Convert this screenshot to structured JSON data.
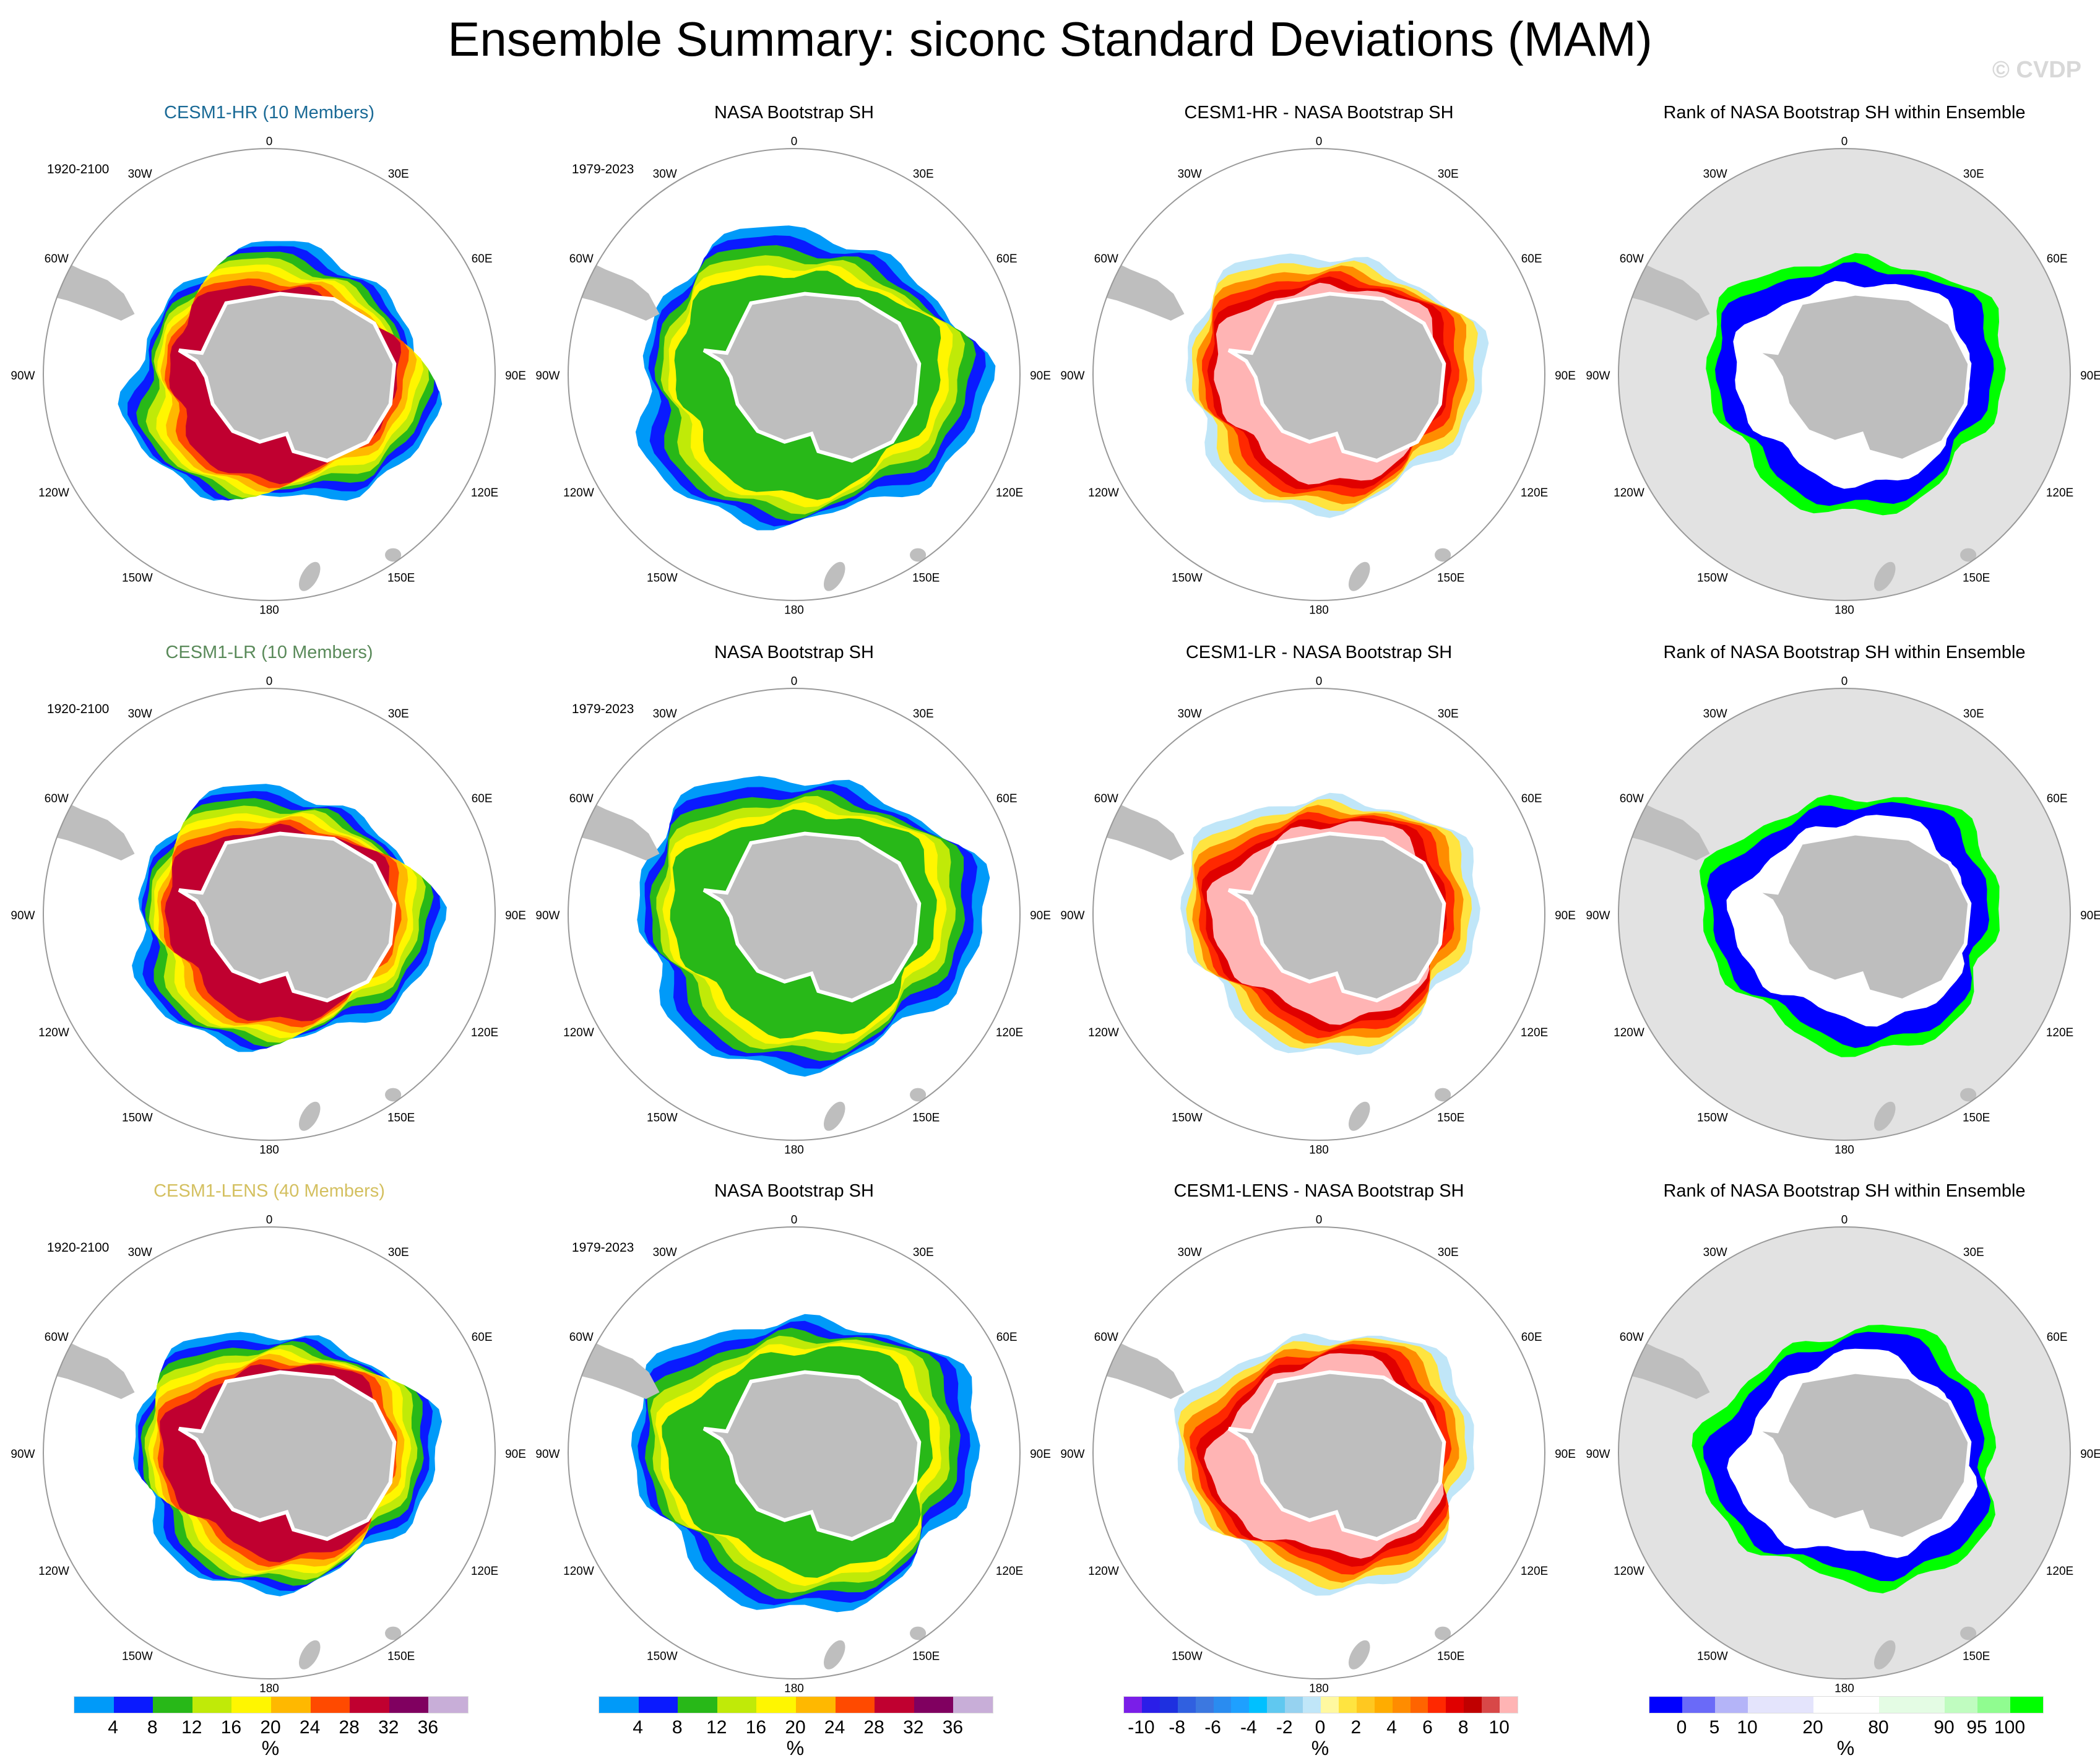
{
  "title": "Ensemble Summary: siconc Standard Deviations (MAM)",
  "watermark": "© CVDP",
  "longitude_labels": [
    "0",
    "30E",
    "60E",
    "90E",
    "120E",
    "150E",
    "180",
    "150W",
    "120W",
    "90W",
    "60W",
    "30W"
  ],
  "rows": [
    {
      "panels": [
        {
          "title": "CESM1-HR (10 Members)",
          "title_color": "#1a6a96",
          "period": "1920-2100",
          "type": "stdev"
        },
        {
          "title": "NASA Bootstrap SH",
          "title_color": "#000000",
          "period": "1979-2023",
          "type": "obs"
        },
        {
          "title": "CESM1-HR - NASA Bootstrap SH",
          "title_color": "#000000",
          "period": "",
          "type": "diff"
        },
        {
          "title": "Rank of NASA Bootstrap SH within Ensemble",
          "title_color": "#000000",
          "period": "",
          "type": "rank"
        }
      ]
    },
    {
      "panels": [
        {
          "title": "CESM1-LR (10 Members)",
          "title_color": "#5a8a5a",
          "period": "1920-2100",
          "type": "stdev"
        },
        {
          "title": "NASA Bootstrap SH",
          "title_color": "#000000",
          "period": "1979-2023",
          "type": "obs"
        },
        {
          "title": "CESM1-LR - NASA Bootstrap SH",
          "title_color": "#000000",
          "period": "",
          "type": "diff"
        },
        {
          "title": "Rank of NASA Bootstrap SH within Ensemble",
          "title_color": "#000000",
          "period": "",
          "type": "rank"
        }
      ]
    },
    {
      "panels": [
        {
          "title": "CESM1-LENS (40 Members)",
          "title_color": "#d4c060",
          "period": "1920-2100",
          "type": "stdev"
        },
        {
          "title": "NASA Bootstrap SH",
          "title_color": "#000000",
          "period": "1979-2023",
          "type": "obs"
        },
        {
          "title": "CESM1-LENS - NASA Bootstrap SH",
          "title_color": "#000000",
          "period": "",
          "type": "diff"
        },
        {
          "title": "Rank of NASA Bootstrap SH within Ensemble",
          "title_color": "#000000",
          "period": "",
          "type": "rank"
        }
      ]
    }
  ],
  "colorbars": [
    {
      "colors": [
        "#009af9",
        "#0a1aff",
        "#28b818",
        "#c0ea08",
        "#fff600",
        "#ffb800",
        "#ff4a00",
        "#c00030",
        "#800060",
        "#c8aed8"
      ],
      "labels": [
        "4",
        "8",
        "12",
        "16",
        "20",
        "24",
        "28",
        "32",
        "36"
      ],
      "label_index": [
        1,
        2,
        3,
        4,
        5,
        6,
        7,
        8,
        9
      ],
      "unit": "%"
    },
    {
      "colors": [
        "#009af9",
        "#0a1aff",
        "#28b818",
        "#c0ea08",
        "#fff600",
        "#ffb800",
        "#ff4a00",
        "#c00030",
        "#800060",
        "#c8aed8"
      ],
      "labels": [
        "4",
        "8",
        "12",
        "16",
        "20",
        "24",
        "28",
        "32",
        "36"
      ],
      "label_index": [
        1,
        2,
        3,
        4,
        5,
        6,
        7,
        8,
        9
      ],
      "unit": "%"
    },
    {
      "colors": [
        "#7a1ee8",
        "#2a1ee8",
        "#1e30e0",
        "#3060e0",
        "#3c78e0",
        "#2a8cf0",
        "#1ea0ff",
        "#00c0ff",
        "#60c8f0",
        "#96d2f0",
        "#c0e6f8",
        "#fff8a0",
        "#ffe440",
        "#ffc820",
        "#ffac00",
        "#ff8c00",
        "#ff6400",
        "#ff2800",
        "#e00000",
        "#c00000",
        "#d84848",
        "#ffb4b4"
      ],
      "labels": [
        "-10",
        "-8",
        "-6",
        "-4",
        "-2",
        "0",
        "2",
        "4",
        "6",
        "8",
        "10"
      ],
      "label_index": [
        1,
        3,
        5,
        7,
        9,
        11,
        13,
        15,
        17,
        19,
        21
      ],
      "unit": "%"
    },
    {
      "colors": [
        "#0000ff",
        "#6a6af8",
        "#b4b4f8",
        "#e4e4fc",
        "#e4e4fc",
        "#ffffff",
        "#ffffff",
        "#e4fce4",
        "#e4fce4",
        "#c0fcc0",
        "#90fc90",
        "#00ff00"
      ],
      "labels": [
        "0",
        "5",
        "10",
        "20",
        "80",
        "90",
        "95",
        "100"
      ],
      "label_index": [
        1,
        2,
        3,
        5,
        7,
        9,
        10,
        11
      ],
      "unit": "%"
    }
  ],
  "field_colors": {
    "stdev": [
      "#009af9",
      "#0a1aff",
      "#28b818",
      "#c0ea08",
      "#fff600",
      "#ffb800",
      "#ff4a00",
      "#c00030"
    ],
    "obs": [
      "#009af9",
      "#0a1aff",
      "#28b818",
      "#c0ea08",
      "#fff600",
      "#28b818"
    ],
    "diff": [
      "#c0e6f8",
      "#ffe440",
      "#ff8c00",
      "#ff2800",
      "#e00000",
      "#ffb4b4"
    ],
    "rank": [
      "#00ff00",
      "#0000ff",
      "#0000ff",
      "#ffffff"
    ],
    "land": "#bebebe",
    "rank_background": "#e2e2e2"
  }
}
